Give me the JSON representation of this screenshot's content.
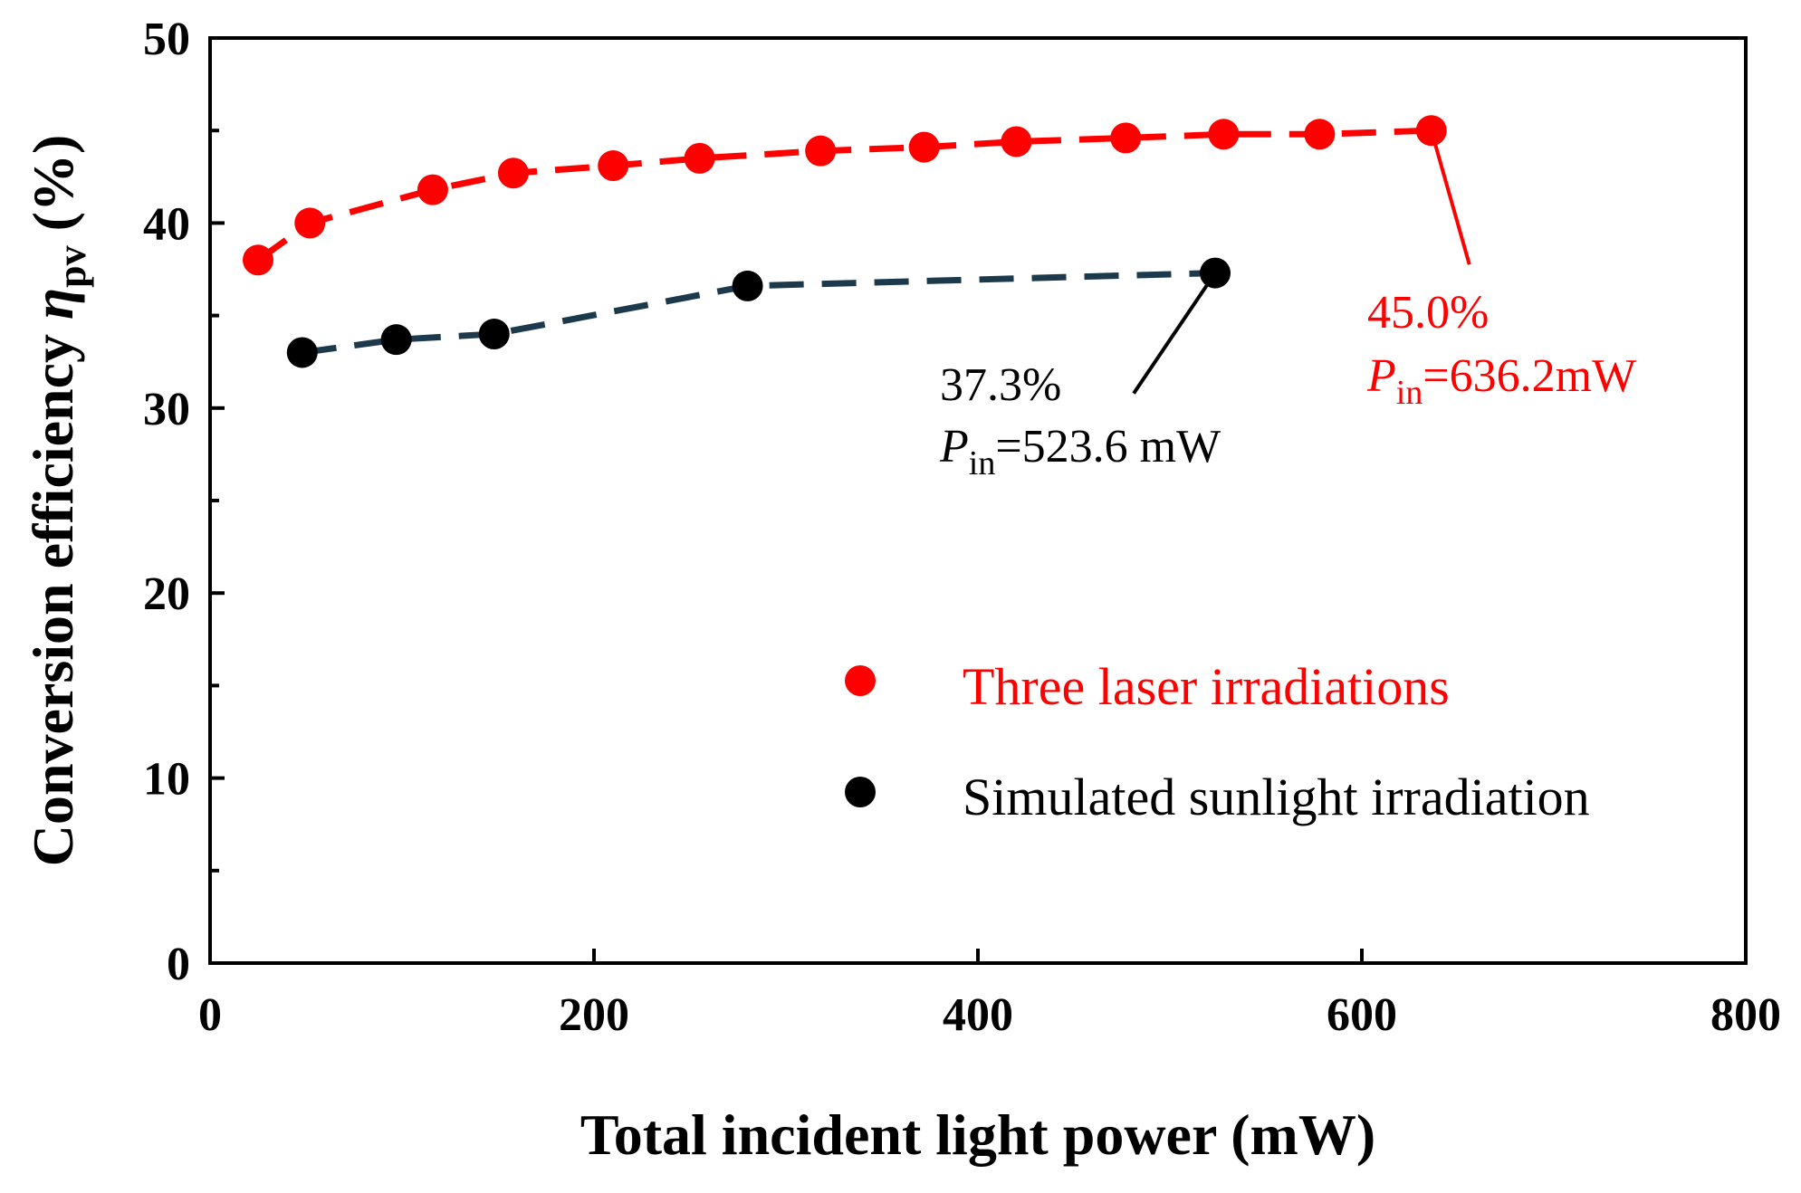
{
  "colors": {
    "laser": "#ff0000",
    "sun_marker": "#000000",
    "sun_line": "#1c3a4c"
  },
  "chart_data": {
    "type": "scatter",
    "xlabel": "Total incident light power (mW)",
    "ylabel_main": "Conversion efficiency ",
    "ylabel_symbol": "η",
    "ylabel_sub": "pv",
    "ylabel_unit": " (%)",
    "xlim": [
      0,
      800
    ],
    "ylim": [
      0,
      50
    ],
    "x_ticks": [
      0,
      200,
      400,
      600,
      800
    ],
    "y_ticks": [
      0,
      10,
      20,
      30,
      40,
      50
    ],
    "grid": false,
    "legend_position": "right-center",
    "series": [
      {
        "name": "Three laser irradiations",
        "color": "#ff0000",
        "line_style": "dashed",
        "x": [
          25,
          52,
          116,
          158,
          210,
          255,
          318,
          372,
          420,
          477,
          528,
          578,
          636.2
        ],
        "y": [
          38.0,
          40.0,
          41.8,
          42.7,
          43.1,
          43.5,
          43.9,
          44.1,
          44.4,
          44.6,
          44.8,
          44.8,
          45.0
        ]
      },
      {
        "name": "Simulated sunlight irradiation",
        "color": "#000000",
        "line_style": "dashed",
        "x": [
          48,
          97,
          148,
          280,
          523.6
        ],
        "y": [
          33.0,
          33.7,
          34.0,
          36.6,
          37.3
        ]
      }
    ],
    "annotations": [
      {
        "series": 0,
        "value": "45.0%",
        "label_p": "P",
        "label_sub": "in",
        "label_rest": "=636.2mW",
        "color": "#ff0000"
      },
      {
        "series": 1,
        "value": "37.3%",
        "label_p": "P",
        "label_sub": "in",
        "label_rest": "=523.6 mW",
        "color": "#000000"
      }
    ]
  }
}
